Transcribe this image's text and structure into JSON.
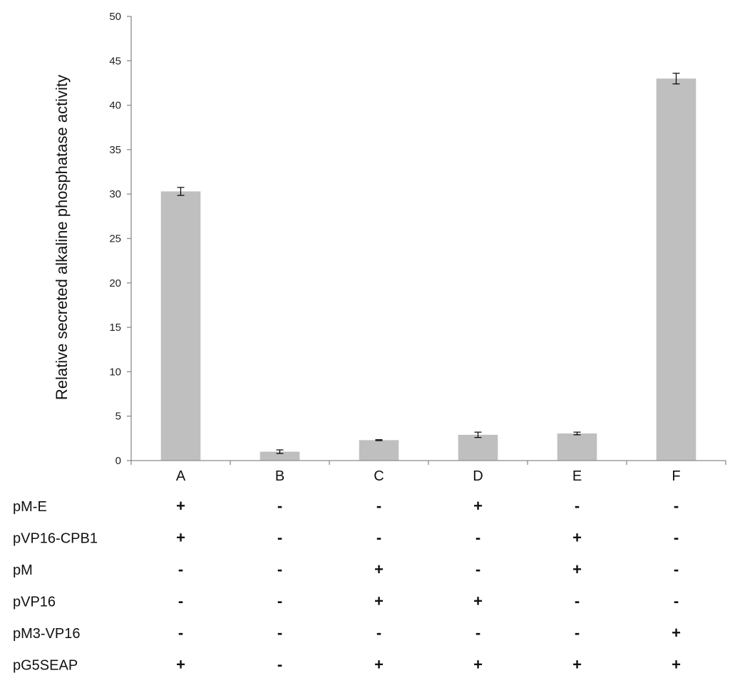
{
  "chart_data": {
    "type": "bar",
    "categories": [
      "A",
      "B",
      "C",
      "D",
      "E",
      "F"
    ],
    "values": [
      30.3,
      1.0,
      2.3,
      2.9,
      3.05,
      43.0
    ],
    "errors": [
      0.45,
      0.2,
      0.05,
      0.3,
      0.15,
      0.6
    ],
    "ylabel": "Relative secreted alkaline phosphatase activity",
    "xlabel": "",
    "ylim": [
      0,
      50
    ],
    "yticks": [
      0,
      5,
      10,
      15,
      20,
      25,
      30,
      35,
      40,
      45,
      50
    ],
    "grid": false,
    "bar_color": "#bfbfbf",
    "axis_color": "#8c8c8c",
    "conditions": [
      {
        "label": "pM-E",
        "marks": [
          "+",
          "-",
          "-",
          "+",
          "-",
          "-"
        ]
      },
      {
        "label": "pVP16-CPB1",
        "marks": [
          "+",
          "-",
          "-",
          "-",
          "+",
          "-"
        ]
      },
      {
        "label": "pM",
        "marks": [
          "-",
          "-",
          "+",
          "-",
          "+",
          "-"
        ]
      },
      {
        "label": "pVP16",
        "marks": [
          "-",
          "-",
          "+",
          "+",
          "-",
          "-"
        ]
      },
      {
        "label": "pM3-VP16",
        "marks": [
          "-",
          "-",
          "-",
          "-",
          "-",
          "+"
        ]
      },
      {
        "label": "pG5SEAP",
        "marks": [
          "+",
          "-",
          "+",
          "+",
          "+",
          "+"
        ]
      }
    ]
  }
}
